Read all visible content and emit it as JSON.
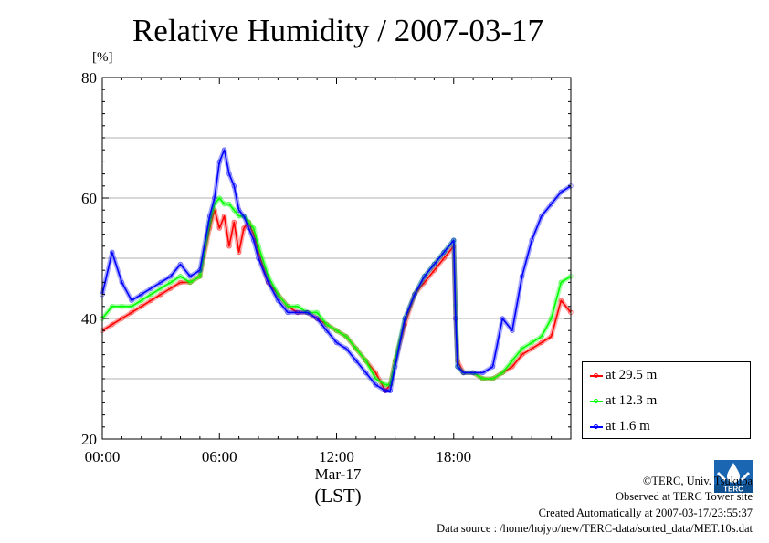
{
  "page": {
    "title": "Relative Humidity / 2007-03-17",
    "unit_label": "[%]",
    "x_date_label": "Mar-17",
    "x_unit_label": "(LST)",
    "credits": [
      "©TERC, Univ. Tsukuba",
      "Observed at TERC Tower site",
      "Created Automatically at 2007-03-17/23:55:37",
      "Data source : /home/hojyo/new/TERC-data/sorted_data/MET.10s.dat"
    ],
    "logo_text": "TERC"
  },
  "chart_data": {
    "type": "line",
    "title": "Relative Humidity / 2007-03-17",
    "ylabel": "[%]",
    "xlabel": "Mar-17 (LST)",
    "x_unit": "hour of day",
    "xlim": [
      0,
      24
    ],
    "ylim": [
      20,
      80
    ],
    "xticks": [
      0,
      6,
      12,
      18
    ],
    "xtick_labels": [
      "00:00",
      "06:00",
      "12:00",
      "18:00"
    ],
    "yticks": [
      20,
      40,
      60,
      80
    ],
    "ytick_labels": [
      "20",
      "40",
      "60",
      "80"
    ],
    "grid": "horizontal every 10",
    "legend_position": "right-bottom, outside plot",
    "x": [
      0,
      0.5,
      1,
      1.5,
      2,
      2.5,
      3,
      3.5,
      4,
      4.5,
      5,
      5.5,
      5.75,
      6,
      6.25,
      6.5,
      6.75,
      7,
      7.25,
      7.5,
      7.75,
      8,
      8.5,
      9,
      9.5,
      10,
      10.5,
      11,
      11.5,
      12,
      12.5,
      13,
      13.5,
      14,
      14.5,
      14.75,
      15,
      15.5,
      16,
      16.5,
      17,
      17.5,
      18,
      18.1,
      18.2,
      18.5,
      19,
      19.5,
      20,
      20.5,
      21,
      21.5,
      22,
      22.5,
      23,
      23.5,
      24
    ],
    "series": [
      {
        "name": "at 29.5 m",
        "color": "#ff0000",
        "values": [
          38,
          39,
          40,
          41,
          42,
          43,
          44,
          45,
          46,
          46,
          47,
          55,
          58,
          55,
          57,
          52,
          56,
          51,
          55,
          56,
          54,
          51,
          46,
          44,
          42,
          41,
          41,
          40,
          39,
          38,
          37,
          35,
          33,
          31,
          28,
          29,
          33,
          39,
          44,
          46,
          48,
          50,
          52,
          40,
          33,
          31,
          31,
          30,
          30,
          31,
          32,
          34,
          35,
          36,
          37,
          43,
          41
        ]
      },
      {
        "name": "at 12.3 m",
        "color": "#00ff00",
        "values": [
          40,
          42,
          42,
          42,
          43,
          44,
          45,
          46,
          47,
          46,
          47,
          56,
          59,
          60,
          59,
          59,
          58,
          57,
          57,
          56,
          55,
          52,
          47,
          44,
          42,
          42,
          41,
          41,
          39,
          38,
          37,
          35,
          33,
          30,
          29,
          29,
          33,
          40,
          44,
          47,
          49,
          51,
          53,
          42,
          32,
          31,
          31,
          30,
          30,
          31,
          33,
          35,
          36,
          37,
          40,
          46,
          47
        ]
      },
      {
        "name": "at 1.6 m",
        "color": "#0000ff",
        "values": [
          44,
          51,
          46,
          43,
          44,
          45,
          46,
          47,
          49,
          47,
          48,
          57,
          60,
          66,
          68,
          64,
          62,
          58,
          57,
          55,
          53,
          50,
          46,
          43,
          41,
          41,
          41,
          40,
          38,
          36,
          35,
          33,
          31,
          29,
          28,
          28,
          32,
          40,
          44,
          47,
          49,
          51,
          53,
          40,
          32,
          31,
          31,
          31,
          32,
          40,
          38,
          47,
          53,
          57,
          59,
          61,
          62
        ]
      }
    ]
  }
}
